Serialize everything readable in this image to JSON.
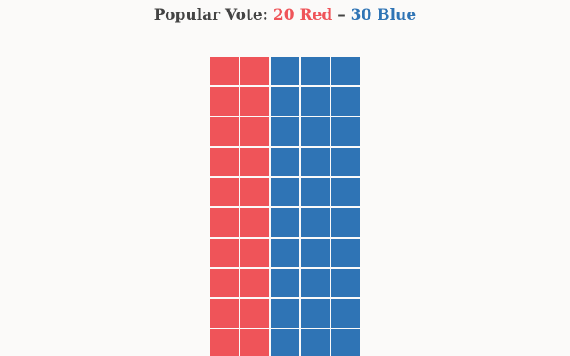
{
  "headline": {
    "prefix": "Popular Vote: ",
    "red_text": "20 Red",
    "separator": " – ",
    "blue_text": "30 Blue"
  },
  "colors": {
    "red": "#ef5459",
    "blue": "#2f74b5",
    "background": "#fbfaf9",
    "text": "#444444"
  },
  "chart_data": {
    "type": "waffle",
    "title": "Popular Vote: 20 Red – 30 Blue",
    "columns": 5,
    "rows": 10,
    "series": [
      {
        "name": "Red",
        "value": 20
      },
      {
        "name": "Blue",
        "value": 30
      }
    ],
    "fill_order": "column-major, left to right"
  }
}
